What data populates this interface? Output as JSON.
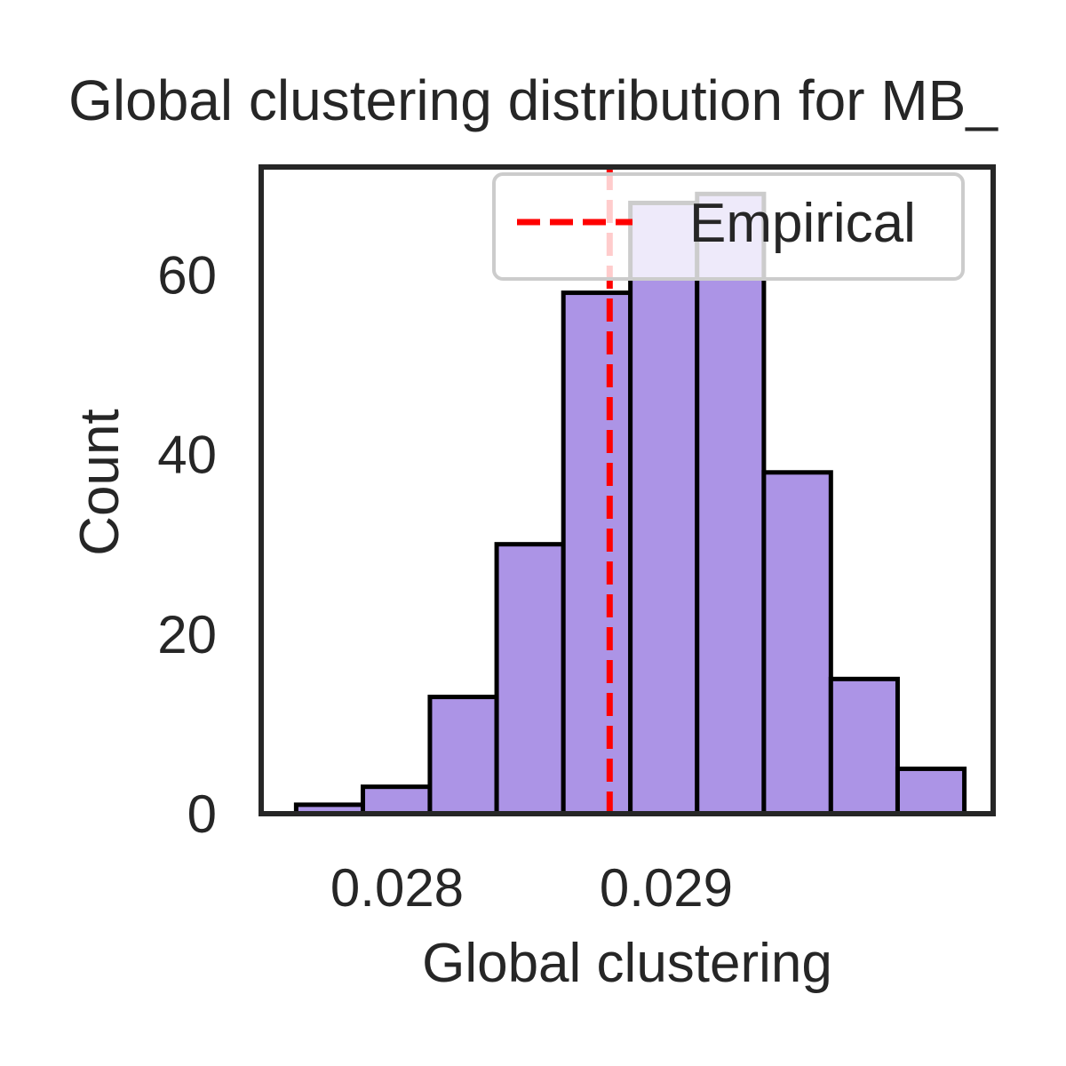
{
  "chart_data": {
    "type": "bar",
    "title": "Global clustering distribution for MB_",
    "xlabel": "Global clustering",
    "ylabel": "Count",
    "bins": [
      {
        "x0": 0.027625,
        "x1": 0.027873,
        "count": 1
      },
      {
        "x0": 0.027873,
        "x1": 0.028122,
        "count": 3
      },
      {
        "x0": 0.028122,
        "x1": 0.02837,
        "count": 13
      },
      {
        "x0": 0.02837,
        "x1": 0.028618,
        "count": 30
      },
      {
        "x0": 0.028618,
        "x1": 0.028867,
        "count": 58
      },
      {
        "x0": 0.028867,
        "x1": 0.029115,
        "count": 68
      },
      {
        "x0": 0.029115,
        "x1": 0.029363,
        "count": 69
      },
      {
        "x0": 0.029363,
        "x1": 0.029612,
        "count": 38
      },
      {
        "x0": 0.029612,
        "x1": 0.02986,
        "count": 15
      },
      {
        "x0": 0.02986,
        "x1": 0.030108,
        "count": 5
      }
    ],
    "xlim": [
      0.027495,
      0.030215
    ],
    "ylim": [
      0,
      72
    ],
    "xticks": [
      {
        "value": 0.028,
        "label": "0.028"
      },
      {
        "value": 0.029,
        "label": "0.029"
      }
    ],
    "yticks": [
      {
        "value": 0,
        "label": "0"
      },
      {
        "value": 20,
        "label": "20"
      },
      {
        "value": 40,
        "label": "40"
      },
      {
        "value": 60,
        "label": "60"
      }
    ],
    "empirical_line": {
      "x": 0.02879,
      "label": "Empirical",
      "color": "#ff0000"
    },
    "legend": {
      "position": "top-right",
      "entries": [
        {
          "label": "Empirical"
        }
      ]
    },
    "grid": false,
    "colors": {
      "bar_fill": "#ac94e6",
      "bar_edge": "#000000",
      "axes": "#262626",
      "line": "#ff0000"
    }
  }
}
